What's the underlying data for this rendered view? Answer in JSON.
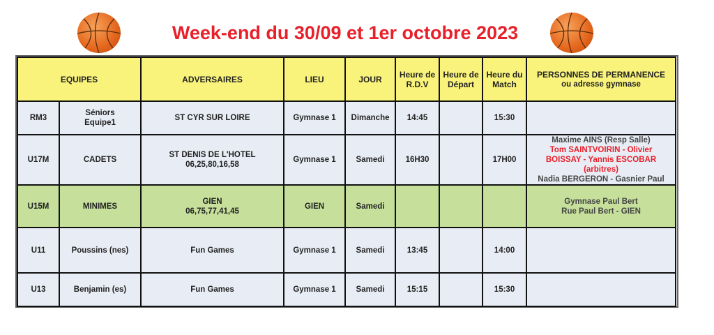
{
  "title": "Week-end du 30/09 et 1er octobre 2023",
  "colors": {
    "title": "#e8202a",
    "header_bg": "#f9f37b",
    "row_bg": "#e8edf5",
    "highlight_row_bg": "#c6e09c"
  },
  "icons": [
    "basketball-icon",
    "basketball-icon"
  ],
  "headers": {
    "equipes": "EQUIPES",
    "adversaires": "ADVERSAIRES",
    "lieu": "LIEU",
    "jour": "JOUR",
    "rdv": [
      "Heure de",
      "R.D.V"
    ],
    "depart": [
      "Heure de",
      "Départ"
    ],
    "match": [
      "Heure du",
      "Match"
    ],
    "permanence": [
      "PERSONNES DE PERMANENCE",
      "ou adresse gymnase"
    ]
  },
  "rows": [
    {
      "code": "RM3",
      "team": [
        "Séniors",
        "Equipe1"
      ],
      "opponent": [
        "ST CYR SUR LOIRE",
        ""
      ],
      "lieu": "Gymnase 1",
      "jour": "Dimanche",
      "rdv": "14:45",
      "depart": "",
      "match": "15:30",
      "permanence": []
    },
    {
      "code": "U17M",
      "team": [
        "CADETS",
        ""
      ],
      "opponent": [
        "ST DENIS DE  L'HOTEL",
        "06,25,80,16,58"
      ],
      "lieu": "Gymnase 1",
      "jour": "Samedi",
      "rdv": "16H30",
      "depart": "",
      "match": "17H00",
      "permanence": [
        {
          "text": "Maxime AINS (Resp Salle)",
          "color": "#444444"
        },
        {
          "text": "Tom SAINTVOIRIN - Olivier BOISSAY - Yannis ESCOBAR (arbitres)",
          "color": "#e8202a"
        },
        {
          "text": "Nadia BERGERON - Gasnier Paul",
          "color": "#444444"
        }
      ]
    },
    {
      "code": "U15M",
      "team": [
        "MINIMES",
        ""
      ],
      "opponent": [
        "GIEN",
        "06,75,77,41,45"
      ],
      "lieu": "GIEN",
      "jour": "Samedi",
      "rdv": "",
      "depart": "",
      "match": "",
      "permanence": [
        {
          "text": "Gymnase Paul Bert",
          "color": "#444444"
        },
        {
          "text": "Rue Paul Bert - GIEN",
          "color": "#444444"
        }
      ]
    },
    {
      "code": "U11",
      "team": [
        "Poussins (nes)",
        ""
      ],
      "opponent": [
        "Fun Games",
        ""
      ],
      "lieu": "Gymnase 1",
      "jour": "Samedi",
      "rdv": "13:45",
      "depart": "",
      "match": "14:00",
      "permanence": []
    },
    {
      "code": "U13",
      "team": [
        "Benjamin (es)",
        ""
      ],
      "opponent": [
        "Fun Games",
        ""
      ],
      "lieu": "Gymnase 1",
      "jour": "Samedi",
      "rdv": "15:15",
      "depart": "",
      "match": "15:30",
      "permanence": []
    }
  ]
}
